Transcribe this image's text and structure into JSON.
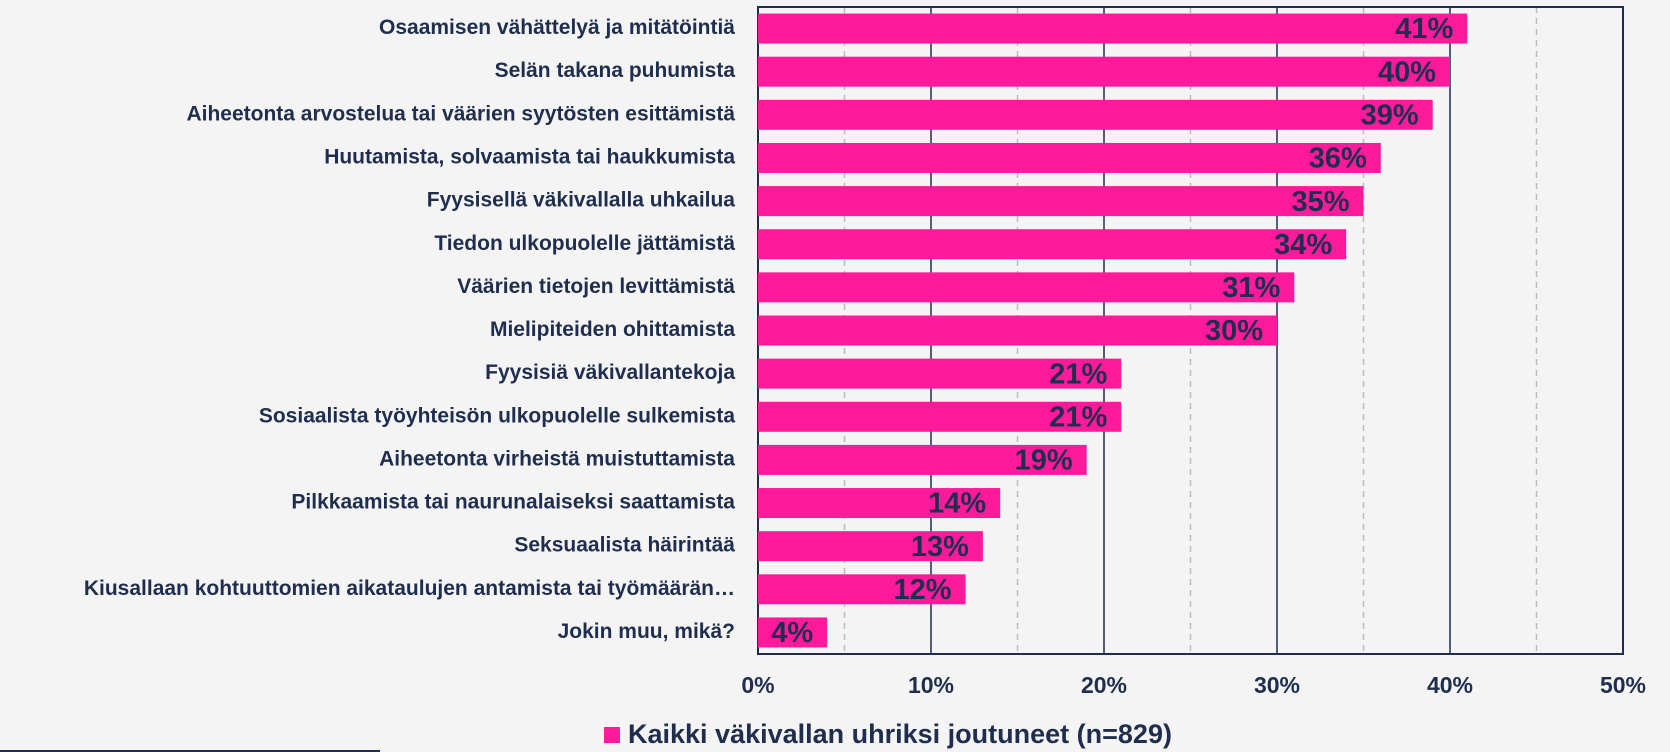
{
  "chart_data": {
    "type": "barh",
    "categories": [
      "Osaamisen vähättelyä ja mitätöintiä",
      "Selän takana puhumista",
      "Aiheetonta arvostelua tai väärien syytösten esittämistä",
      "Huutamista, solvaamista tai haukkumista",
      "Fyysisellä väkivallalla uhkailua",
      "Tiedon ulkopuolelle jättämistä",
      "Väärien tietojen levittämistä",
      "Mielipiteiden ohittamista ",
      "Fyysisiä väkivallantekoja",
      "Sosiaalista työyhteisön ulkopuolelle sulkemista",
      "Aiheetonta virheistä muistuttamista",
      "Pilkkaamista tai naurunalaiseksi saattamista",
      "Seksuaalista häirintää",
      "Kiusallaan kohtuuttomien aikataulujen antamista tai työmäärän…",
      "Jokin muu, mikä?"
    ],
    "series": [
      {
        "name": "Kaikki väkivallan uhriksi joutuneet (n=829)",
        "color": "#ff1a9c",
        "values": [
          41,
          40,
          39,
          36,
          35,
          34,
          31,
          30,
          21,
          21,
          19,
          14,
          13,
          12,
          4
        ],
        "value_labels": [
          "41%",
          "40%",
          "39%",
          "36%",
          "35%",
          "34%",
          "31%",
          "30%",
          "21%",
          "21%",
          "19%",
          "14%",
          "13%",
          "12%",
          "4%"
        ]
      }
    ],
    "xlim": [
      0,
      50
    ],
    "xticks": [
      {
        "value": 0,
        "label": "0%"
      },
      {
        "value": 10,
        "label": "10%"
      },
      {
        "value": 20,
        "label": "20%"
      },
      {
        "value": 30,
        "label": "30%"
      },
      {
        "value": 40,
        "label": "40%"
      },
      {
        "value": 50,
        "label": "50%"
      }
    ],
    "minor_xticks": [
      5,
      15,
      25,
      35,
      45
    ],
    "grid": true,
    "legend": "bottom"
  }
}
